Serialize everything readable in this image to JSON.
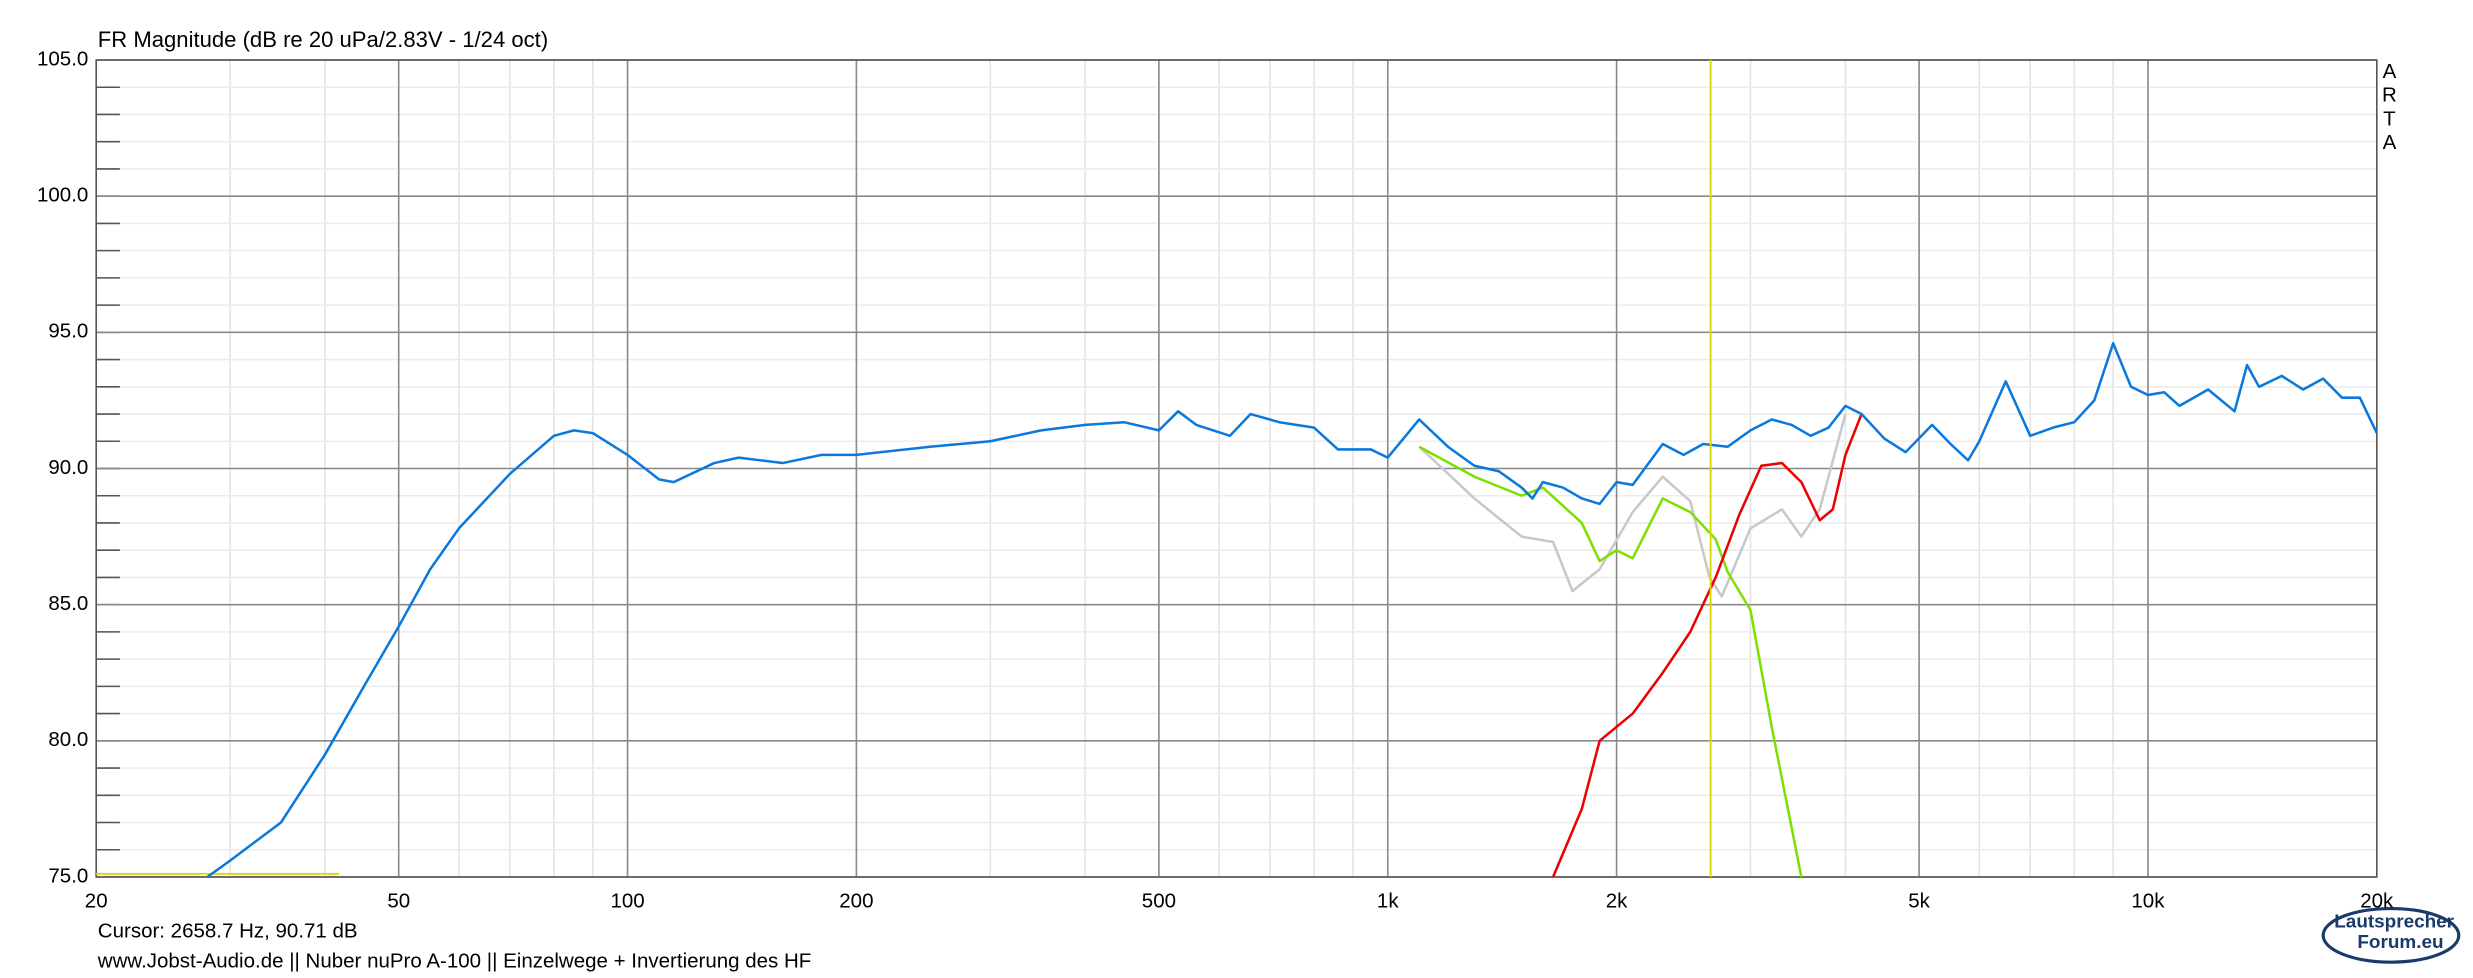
{
  "chart_data": {
    "type": "line",
    "title": "FR Magnitude (dB re 20 uPa/2.83V - 1/24 oct)",
    "xlog": true,
    "grid": true,
    "minor_grid": true,
    "xlim": [
      20,
      20000
    ],
    "ylim": [
      75,
      105
    ],
    "xticks": [
      20,
      50,
      100,
      200,
      500,
      {
        "value": 1000,
        "label": "1k"
      },
      {
        "value": 2000,
        "label": "2k"
      },
      {
        "value": 5000,
        "label": "5k"
      },
      {
        "value": 10000,
        "label": "10k"
      },
      {
        "value": 20000,
        "label": "20k"
      }
    ],
    "yticks": [
      {
        "value": 75,
        "label": "75.0"
      },
      {
        "value": 80,
        "label": "80.0"
      },
      {
        "value": 85,
        "label": "85.0"
      },
      {
        "value": 90,
        "label": "90.0"
      },
      {
        "value": 95,
        "label": "95.0"
      },
      {
        "value": 100,
        "label": "100.0"
      },
      {
        "value": 105,
        "label": "105.0"
      }
    ],
    "cursor": {
      "x": 2658.7,
      "color": "#d8d800",
      "label": "Cursor: 2658.7 Hz, 90.71 dB"
    },
    "footer": "www.Jobst-Audio.de  ||  Nuber nuPro A-100  ||  Einzelwege + Invertierung des HF",
    "watermark": [
      "A",
      "R",
      "T",
      "A"
    ],
    "logo": [
      "Lautsprecher",
      "Forum.eu"
    ],
    "series": [
      {
        "color": "#c8c8c8",
        "x": [
          1100,
          1300,
          1500,
          1650,
          1750,
          1900,
          2100,
          2300,
          2500,
          2650,
          2750,
          3000,
          3300,
          3500,
          3700,
          4000
        ],
        "values": [
          90.8,
          88.9,
          87.5,
          87.3,
          85.5,
          86.3,
          88.4,
          89.7,
          88.8,
          86.0,
          85.3,
          87.8,
          88.5,
          87.5,
          88.5,
          92.0
        ]
      },
      {
        "color": "#7ee000",
        "x": [
          1100,
          1300,
          1500,
          1600,
          1800,
          1900,
          2000,
          2100,
          2300,
          2500,
          2700,
          2800,
          3000,
          3200,
          3500
        ],
        "values": [
          90.8,
          89.7,
          89.0,
          89.3,
          88.0,
          86.6,
          87.0,
          86.7,
          88.9,
          88.4,
          87.4,
          86.2,
          84.8,
          80.5,
          75.0
        ]
      },
      {
        "color": "#ee0000",
        "x": [
          1650,
          1800,
          1900,
          2100,
          2300,
          2500,
          2700,
          2900,
          3100,
          3300,
          3500,
          3700,
          3850,
          4000,
          4200
        ],
        "values": [
          75.0,
          77.5,
          80.0,
          81.0,
          82.5,
          84.0,
          86.0,
          88.3,
          90.1,
          90.2,
          89.5,
          88.1,
          88.5,
          90.5,
          92.0
        ]
      },
      {
        "color": "#0a78dc",
        "x": [
          28,
          30,
          35,
          40,
          45,
          50,
          55,
          60,
          70,
          80,
          85,
          90,
          100,
          110,
          115,
          130,
          140,
          160,
          180,
          200,
          250,
          300,
          350,
          400,
          450,
          500,
          530,
          560,
          620,
          660,
          720,
          800,
          860,
          950,
          1000,
          1100,
          1200,
          1300,
          1400,
          1500,
          1550,
          1600,
          1700,
          1800,
          1900,
          2000,
          2100,
          2300,
          2450,
          2600,
          2800,
          3000,
          3200,
          3400,
          3600,
          3800,
          4000,
          4200,
          4500,
          4800,
          5200,
          5500,
          5800,
          6000,
          6500,
          7000,
          7500,
          8000,
          8500,
          9000,
          9500,
          10000,
          10500,
          11000,
          12000,
          13000,
          13500,
          14000,
          15000,
          16000,
          17000,
          18000,
          19000,
          20000
        ],
        "values": [
          75.0,
          75.6,
          77.0,
          79.5,
          82.0,
          84.2,
          86.3,
          87.8,
          89.8,
          91.2,
          91.4,
          91.3,
          90.5,
          89.6,
          89.5,
          90.2,
          90.4,
          90.2,
          90.5,
          90.5,
          90.8,
          91.0,
          91.4,
          91.6,
          91.7,
          91.4,
          92.1,
          91.6,
          91.2,
          92.0,
          91.7,
          91.5,
          90.7,
          90.7,
          90.4,
          91.8,
          90.8,
          90.1,
          89.9,
          89.3,
          88.9,
          89.5,
          89.3,
          88.9,
          88.7,
          89.5,
          89.4,
          90.9,
          90.5,
          90.9,
          90.8,
          91.4,
          91.8,
          91.6,
          91.2,
          91.5,
          92.3,
          92.0,
          91.1,
          90.6,
          91.6,
          90.9,
          90.3,
          91.0,
          93.2,
          91.2,
          91.5,
          91.7,
          92.5,
          94.6,
          93.0,
          92.7,
          92.8,
          92.3,
          92.9,
          92.1,
          93.8,
          93.0,
          93.4,
          92.9,
          93.3,
          92.6,
          92.6,
          91.3
        ]
      }
    ]
  }
}
